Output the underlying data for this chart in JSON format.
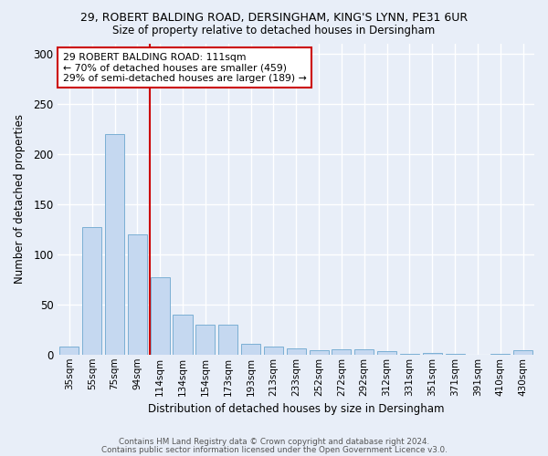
{
  "title1": "29, ROBERT BALDING ROAD, DERSINGHAM, KING'S LYNN, PE31 6UR",
  "title2": "Size of property relative to detached houses in Dersingham",
  "xlabel": "Distribution of detached houses by size in Dersingham",
  "ylabel": "Number of detached properties",
  "bar_labels": [
    "35sqm",
    "55sqm",
    "75sqm",
    "94sqm",
    "114sqm",
    "134sqm",
    "154sqm",
    "173sqm",
    "193sqm",
    "213sqm",
    "233sqm",
    "252sqm",
    "272sqm",
    "292sqm",
    "312sqm",
    "331sqm",
    "351sqm",
    "371sqm",
    "391sqm",
    "410sqm",
    "430sqm"
  ],
  "bar_values": [
    8,
    127,
    220,
    120,
    77,
    40,
    30,
    30,
    11,
    8,
    6,
    4,
    5,
    5,
    3,
    1,
    2,
    1,
    0,
    1,
    4
  ],
  "bar_color": "#c5d8f0",
  "bar_edge_color": "#7bafd4",
  "background_color": "#e8eef8",
  "grid_color": "#ffffff",
  "vline_color": "#cc0000",
  "annotation_text": "29 ROBERT BALDING ROAD: 111sqm\n← 70% of detached houses are smaller (459)\n29% of semi-detached houses are larger (189) →",
  "annotation_box_color": "#ffffff",
  "annotation_box_edge": "#cc0000",
  "footer1": "Contains HM Land Registry data © Crown copyright and database right 2024.",
  "footer2": "Contains public sector information licensed under the Open Government Licence v3.0.",
  "ylim": [
    0,
    310
  ],
  "yticks": [
    0,
    50,
    100,
    150,
    200,
    250,
    300
  ],
  "vline_index": 4
}
